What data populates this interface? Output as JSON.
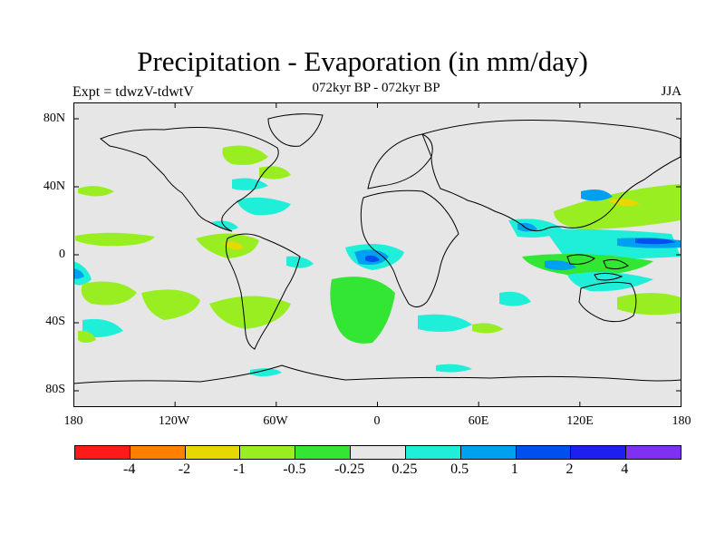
{
  "header": {
    "title": "Precipitation - Evaporation (in mm/day)",
    "subtitle": "072kyr BP - 072kyr BP",
    "left_label": "Expt = tdwzV-tdwtV",
    "right_label": "JJA"
  },
  "axes": {
    "y_ticks": [
      "80N",
      "40N",
      "0",
      "40S",
      "80S"
    ],
    "x_ticks": [
      "180",
      "120W",
      "60W",
      "0",
      "60E",
      "120E",
      "180"
    ]
  },
  "colorbar": {
    "colors": [
      "#ff1a1a",
      "#ff8000",
      "#e6d800",
      "#99ee22",
      "#33e633",
      "#e6e6e6",
      "#1fefd8",
      "#00a0f0",
      "#0050f0",
      "#1e1ef0",
      "#8030f0"
    ],
    "labels": [
      "-4",
      "-2",
      "-1",
      "-0.5",
      "-0.25",
      "0.25",
      "0.5",
      "1",
      "2",
      "4"
    ]
  },
  "map": {
    "background_color": "#e6e6e6",
    "coastline_color": "#000000",
    "colors": {
      "light_green": "#99ee22",
      "green": "#33e633",
      "cyan": "#1fefd8",
      "light_blue": "#00a0f0",
      "blue": "#0050f0",
      "yellow": "#e6d800"
    },
    "lon_range": [
      -180,
      180
    ],
    "lat_range": [
      -90,
      90
    ]
  }
}
